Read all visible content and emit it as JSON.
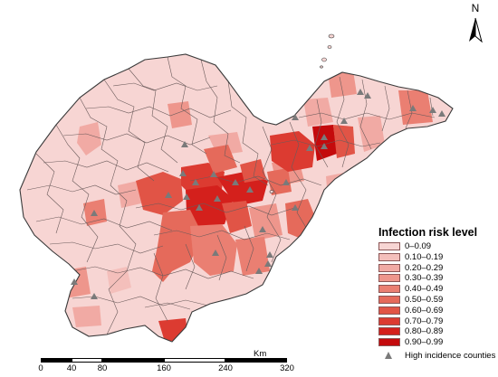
{
  "north_arrow": {
    "label": "N"
  },
  "legend": {
    "title": "Infection risk level",
    "classes": [
      {
        "label": "0–0.09",
        "color": "#f7d5d3"
      },
      {
        "label": "0.10–0.19",
        "color": "#f4bfbb"
      },
      {
        "label": "0.20–0.29",
        "color": "#f1aaa4"
      },
      {
        "label": "0.30–0.39",
        "color": "#ee968c"
      },
      {
        "label": "0.40–0.49",
        "color": "#ea7f72"
      },
      {
        "label": "0.50–0.59",
        "color": "#e56a5b"
      },
      {
        "label": "0.60–0.69",
        "color": "#e15446"
      },
      {
        "label": "0.70–0.79",
        "color": "#dc3b31"
      },
      {
        "label": "0.80–0.89",
        "color": "#d4201c"
      },
      {
        "label": "0.90–0.99",
        "color": "#c40a0c"
      }
    ],
    "marker_label": "High incidence counties",
    "marker_color": "#7a7a7a"
  },
  "scale_bar": {
    "unit": "Km",
    "ticks": [
      "0",
      "40",
      "80",
      "160",
      "240",
      "320"
    ],
    "tick_values": [
      0,
      40,
      80,
      160,
      240,
      320
    ]
  },
  "colors": {
    "base": "#f7d5d3",
    "outline": "#3a3a3a",
    "county_line": "#6b5b5b"
  }
}
